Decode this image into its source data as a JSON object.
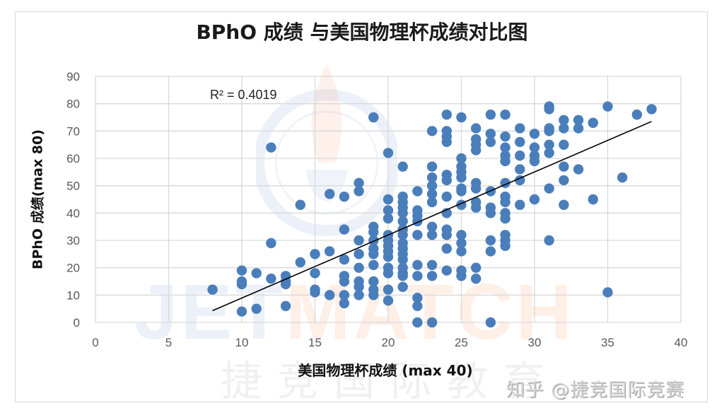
{
  "chart_data": {
    "type": "scatter",
    "title": "BPhO 成绩 与美国物理杯成绩对比图",
    "xlabel": "美国物理杯成绩 (max 40)",
    "ylabel": "BPhO 成绩(max 80)",
    "xlim": [
      0,
      40
    ],
    "ylim": [
      0,
      90
    ],
    "x_ticks": [
      0,
      5,
      10,
      15,
      20,
      25,
      30,
      35,
      40
    ],
    "y_ticks": [
      0,
      10,
      20,
      30,
      40,
      50,
      60,
      70,
      80,
      90
    ],
    "grid": true,
    "legend": "none",
    "marker_color": "#4a7ebb",
    "trendline": {
      "type": "linear",
      "x_range": [
        8,
        38
      ],
      "y_start": 4.3,
      "y_end": 73.5,
      "r_squared_label": "R² = 0.4019",
      "color": "#000000"
    },
    "points": [
      [
        8,
        12
      ],
      [
        10,
        19
      ],
      [
        10,
        15
      ],
      [
        10,
        14
      ],
      [
        10,
        4
      ],
      [
        11,
        18
      ],
      [
        11,
        5
      ],
      [
        12,
        64
      ],
      [
        12,
        29
      ],
      [
        12,
        16
      ],
      [
        13,
        17
      ],
      [
        13,
        15
      ],
      [
        13,
        14
      ],
      [
        13,
        6
      ],
      [
        14,
        43
      ],
      [
        14,
        22
      ],
      [
        15,
        25
      ],
      [
        15,
        18
      ],
      [
        15,
        12
      ],
      [
        15,
        11
      ],
      [
        16,
        47
      ],
      [
        16,
        26
      ],
      [
        16,
        10
      ],
      [
        17,
        46
      ],
      [
        17,
        34
      ],
      [
        17,
        23
      ],
      [
        17,
        17
      ],
      [
        17,
        15
      ],
      [
        17,
        10
      ],
      [
        17,
        7
      ],
      [
        18,
        51
      ],
      [
        18,
        48
      ],
      [
        18,
        30
      ],
      [
        18,
        25
      ],
      [
        18,
        20
      ],
      [
        18,
        15
      ],
      [
        18,
        13
      ],
      [
        18,
        10
      ],
      [
        19,
        75
      ],
      [
        19,
        35
      ],
      [
        19,
        33
      ],
      [
        19,
        30
      ],
      [
        19,
        27
      ],
      [
        19,
        25
      ],
      [
        19,
        21
      ],
      [
        19,
        15
      ],
      [
        19,
        12
      ],
      [
        19,
        10
      ],
      [
        20,
        62
      ],
      [
        20,
        45
      ],
      [
        20,
        41
      ],
      [
        20,
        38
      ],
      [
        20,
        32
      ],
      [
        20,
        30
      ],
      [
        20,
        28
      ],
      [
        20,
        26
      ],
      [
        20,
        24
      ],
      [
        20,
        20
      ],
      [
        20,
        18
      ],
      [
        20,
        12
      ],
      [
        20,
        8
      ],
      [
        21,
        57
      ],
      [
        21,
        46
      ],
      [
        21,
        44
      ],
      [
        21,
        42
      ],
      [
        21,
        40
      ],
      [
        21,
        37
      ],
      [
        21,
        34
      ],
      [
        21,
        32
      ],
      [
        21,
        29
      ],
      [
        21,
        27
      ],
      [
        21,
        25
      ],
      [
        21,
        23
      ],
      [
        21,
        20
      ],
      [
        21,
        18
      ],
      [
        21,
        17
      ],
      [
        21,
        13
      ],
      [
        22,
        48
      ],
      [
        22,
        41
      ],
      [
        22,
        39
      ],
      [
        22,
        37
      ],
      [
        22,
        32
      ],
      [
        22,
        21
      ],
      [
        22,
        17
      ],
      [
        22,
        9
      ],
      [
        22,
        6
      ],
      [
        22,
        0
      ],
      [
        23,
        70
      ],
      [
        23,
        57
      ],
      [
        23,
        53
      ],
      [
        23,
        50
      ],
      [
        23,
        47
      ],
      [
        23,
        44
      ],
      [
        23,
        35
      ],
      [
        23,
        32
      ],
      [
        23,
        21
      ],
      [
        23,
        17
      ],
      [
        23,
        0
      ],
      [
        24,
        76
      ],
      [
        24,
        70
      ],
      [
        24,
        68
      ],
      [
        24,
        66
      ],
      [
        24,
        54
      ],
      [
        24,
        52
      ],
      [
        24,
        46
      ],
      [
        24,
        40
      ],
      [
        24,
        34
      ],
      [
        24,
        32
      ],
      [
        24,
        27
      ],
      [
        24,
        19
      ],
      [
        25,
        75
      ],
      [
        25,
        60
      ],
      [
        25,
        57
      ],
      [
        25,
        55
      ],
      [
        25,
        53
      ],
      [
        25,
        49
      ],
      [
        25,
        48
      ],
      [
        25,
        43
      ],
      [
        25,
        32
      ],
      [
        25,
        29
      ],
      [
        25,
        26
      ],
      [
        25,
        19
      ],
      [
        25,
        17
      ],
      [
        26,
        71
      ],
      [
        26,
        67
      ],
      [
        26,
        65
      ],
      [
        26,
        63
      ],
      [
        26,
        51
      ],
      [
        26,
        49
      ],
      [
        26,
        44
      ],
      [
        26,
        42
      ],
      [
        26,
        20
      ],
      [
        26,
        16
      ],
      [
        27,
        76
      ],
      [
        27,
        69
      ],
      [
        27,
        66
      ],
      [
        27,
        48
      ],
      [
        27,
        42
      ],
      [
        27,
        40
      ],
      [
        27,
        30
      ],
      [
        27,
        26
      ],
      [
        27,
        0
      ],
      [
        28,
        76
      ],
      [
        28,
        68
      ],
      [
        28,
        64
      ],
      [
        28,
        61
      ],
      [
        28,
        59
      ],
      [
        28,
        51
      ],
      [
        28,
        46
      ],
      [
        28,
        44
      ],
      [
        28,
        40
      ],
      [
        28,
        38
      ],
      [
        28,
        32
      ],
      [
        28,
        30
      ],
      [
        28,
        28
      ],
      [
        29,
        71
      ],
      [
        29,
        66
      ],
      [
        29,
        61
      ],
      [
        29,
        56
      ],
      [
        29,
        52
      ],
      [
        29,
        43
      ],
      [
        30,
        69
      ],
      [
        30,
        64
      ],
      [
        30,
        61
      ],
      [
        30,
        59
      ],
      [
        30,
        45
      ],
      [
        31,
        79
      ],
      [
        31,
        78
      ],
      [
        31,
        71
      ],
      [
        31,
        70
      ],
      [
        31,
        65
      ],
      [
        31,
        62
      ],
      [
        31,
        49
      ],
      [
        31,
        30
      ],
      [
        32,
        74
      ],
      [
        32,
        71
      ],
      [
        32,
        65
      ],
      [
        32,
        57
      ],
      [
        32,
        52
      ],
      [
        32,
        43
      ],
      [
        33,
        74
      ],
      [
        33,
        71
      ],
      [
        33,
        56
      ],
      [
        34,
        73
      ],
      [
        34,
        45
      ],
      [
        35,
        79
      ],
      [
        35,
        11
      ],
      [
        36,
        53
      ],
      [
        37,
        76
      ],
      [
        38,
        78
      ]
    ]
  },
  "annotations": {
    "r_squared": "R² = 0.4019"
  },
  "watermarks": {
    "brand_latin": [
      "JET",
      "MATCH"
    ],
    "brand_cn": "捷竞国际教育",
    "footer": "知乎 @捷竞国际竞赛"
  }
}
